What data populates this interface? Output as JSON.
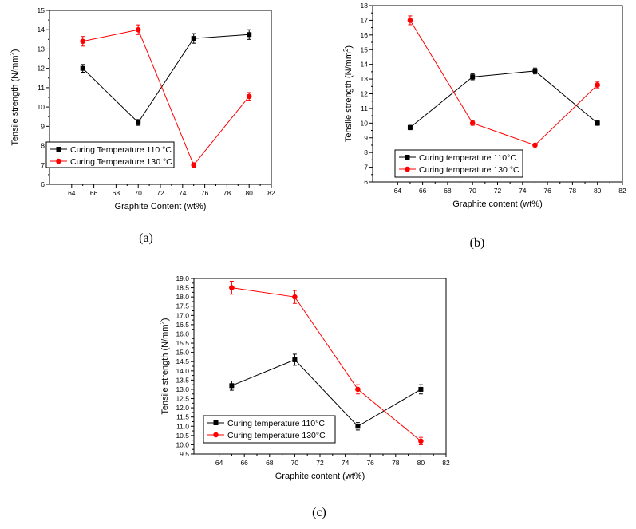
{
  "chart_data": [
    {
      "type": "line",
      "caption": "(a)",
      "xlabel": "Graphite Content (wt%)",
      "ylabel": "Tensile strength (N/mm",
      "ylabel_sup": "2",
      "ylabel_end": ")",
      "xlim": [
        62,
        82
      ],
      "ylim": [
        6,
        15
      ],
      "xticks": [
        64,
        66,
        68,
        70,
        72,
        74,
        76,
        78,
        80,
        82
      ],
      "yticks": [
        6,
        7,
        8,
        9,
        10,
        11,
        12,
        13,
        14,
        15
      ],
      "ytick_labels": [
        "6",
        "7",
        "8",
        "9",
        "10",
        "11",
        "12",
        "13",
        "14",
        "15"
      ],
      "legend_position": "bottom-left",
      "series": [
        {
          "name": "Curing Temperature 110 °C",
          "color": "#000000",
          "marker": "square",
          "x": [
            65,
            70,
            75,
            80
          ],
          "y": [
            12.0,
            9.2,
            13.55,
            13.75
          ],
          "err": [
            0.2,
            0.15,
            0.25,
            0.25
          ]
        },
        {
          "name": "Curing Temperature 130 °C",
          "color": "#ff0000",
          "marker": "circle",
          "x": [
            65,
            70,
            75,
            80
          ],
          "y": [
            13.4,
            14.0,
            7.0,
            10.55
          ],
          "err": [
            0.25,
            0.25,
            0.12,
            0.2
          ]
        }
      ]
    },
    {
      "type": "line",
      "caption": "(b)",
      "xlabel": "Graphite content (wt%)",
      "ylabel": "Tensile strength (N/mm",
      "ylabel_sup": "2",
      "ylabel_end": ")",
      "xlim": [
        62,
        82
      ],
      "ylim": [
        6,
        18
      ],
      "xticks": [
        64,
        66,
        68,
        70,
        72,
        74,
        76,
        78,
        80,
        82
      ],
      "yticks": [
        6,
        7,
        8,
        9,
        10,
        11,
        12,
        13,
        14,
        15,
        16,
        17,
        18
      ],
      "ytick_labels": [
        "6",
        "7",
        "8",
        "9",
        "10",
        "11",
        "12",
        "13",
        "14",
        "15",
        "16",
        "17",
        "18"
      ],
      "legend_position": "bottom-left",
      "series": [
        {
          "name": "Curing temperature 110°C",
          "color": "#000000",
          "marker": "square",
          "x": [
            65,
            70,
            75,
            80
          ],
          "y": [
            9.7,
            13.15,
            13.55,
            10.0
          ],
          "err": [
            0.15,
            0.2,
            0.2,
            0.15
          ]
        },
        {
          "name": "Curing temperature 130 °C",
          "color": "#ff0000",
          "marker": "circle",
          "x": [
            65,
            70,
            75,
            80
          ],
          "y": [
            17.0,
            10.0,
            8.5,
            12.6
          ],
          "err": [
            0.3,
            0.15,
            0.1,
            0.2
          ]
        }
      ]
    },
    {
      "type": "line",
      "caption": "(c)",
      "xlabel": "Graphite content (wt%)",
      "ylabel": "Tensile strength (N/mm",
      "ylabel_sup": "2",
      "ylabel_end": ")",
      "xlim": [
        62,
        82
      ],
      "ylim": [
        9.5,
        19.0
      ],
      "xticks": [
        64,
        66,
        68,
        70,
        72,
        74,
        76,
        78,
        80,
        82
      ],
      "yticks": [
        9.5,
        10.0,
        10.5,
        11.0,
        11.5,
        12.0,
        12.5,
        13.0,
        13.5,
        14.0,
        14.5,
        15.0,
        15.5,
        16.0,
        16.5,
        17.0,
        17.5,
        18.0,
        18.5,
        19.0
      ],
      "ytick_labels": [
        "9.5",
        "10.0",
        "10.5",
        "11.0",
        "11.5",
        "12.0",
        "12.5",
        "13.0",
        "13.5",
        "14.0",
        "14.5",
        "15.0",
        "15.5",
        "16.0",
        "16.5",
        "17.0",
        "17.5",
        "18.0",
        "18.5",
        "19.0"
      ],
      "legend_position": "bottom-left",
      "series": [
        {
          "name": "Curing temperature 110°C",
          "color": "#000000",
          "marker": "square",
          "x": [
            65,
            70,
            75,
            80
          ],
          "y": [
            13.2,
            14.6,
            11.0,
            13.0
          ],
          "err": [
            0.25,
            0.3,
            0.2,
            0.25
          ]
        },
        {
          "name": "Curing temperature 130°C",
          "color": "#ff0000",
          "marker": "circle",
          "x": [
            65,
            70,
            75,
            80
          ],
          "y": [
            18.5,
            18.0,
            13.0,
            10.2
          ],
          "err": [
            0.35,
            0.35,
            0.25,
            0.2
          ]
        }
      ]
    }
  ]
}
